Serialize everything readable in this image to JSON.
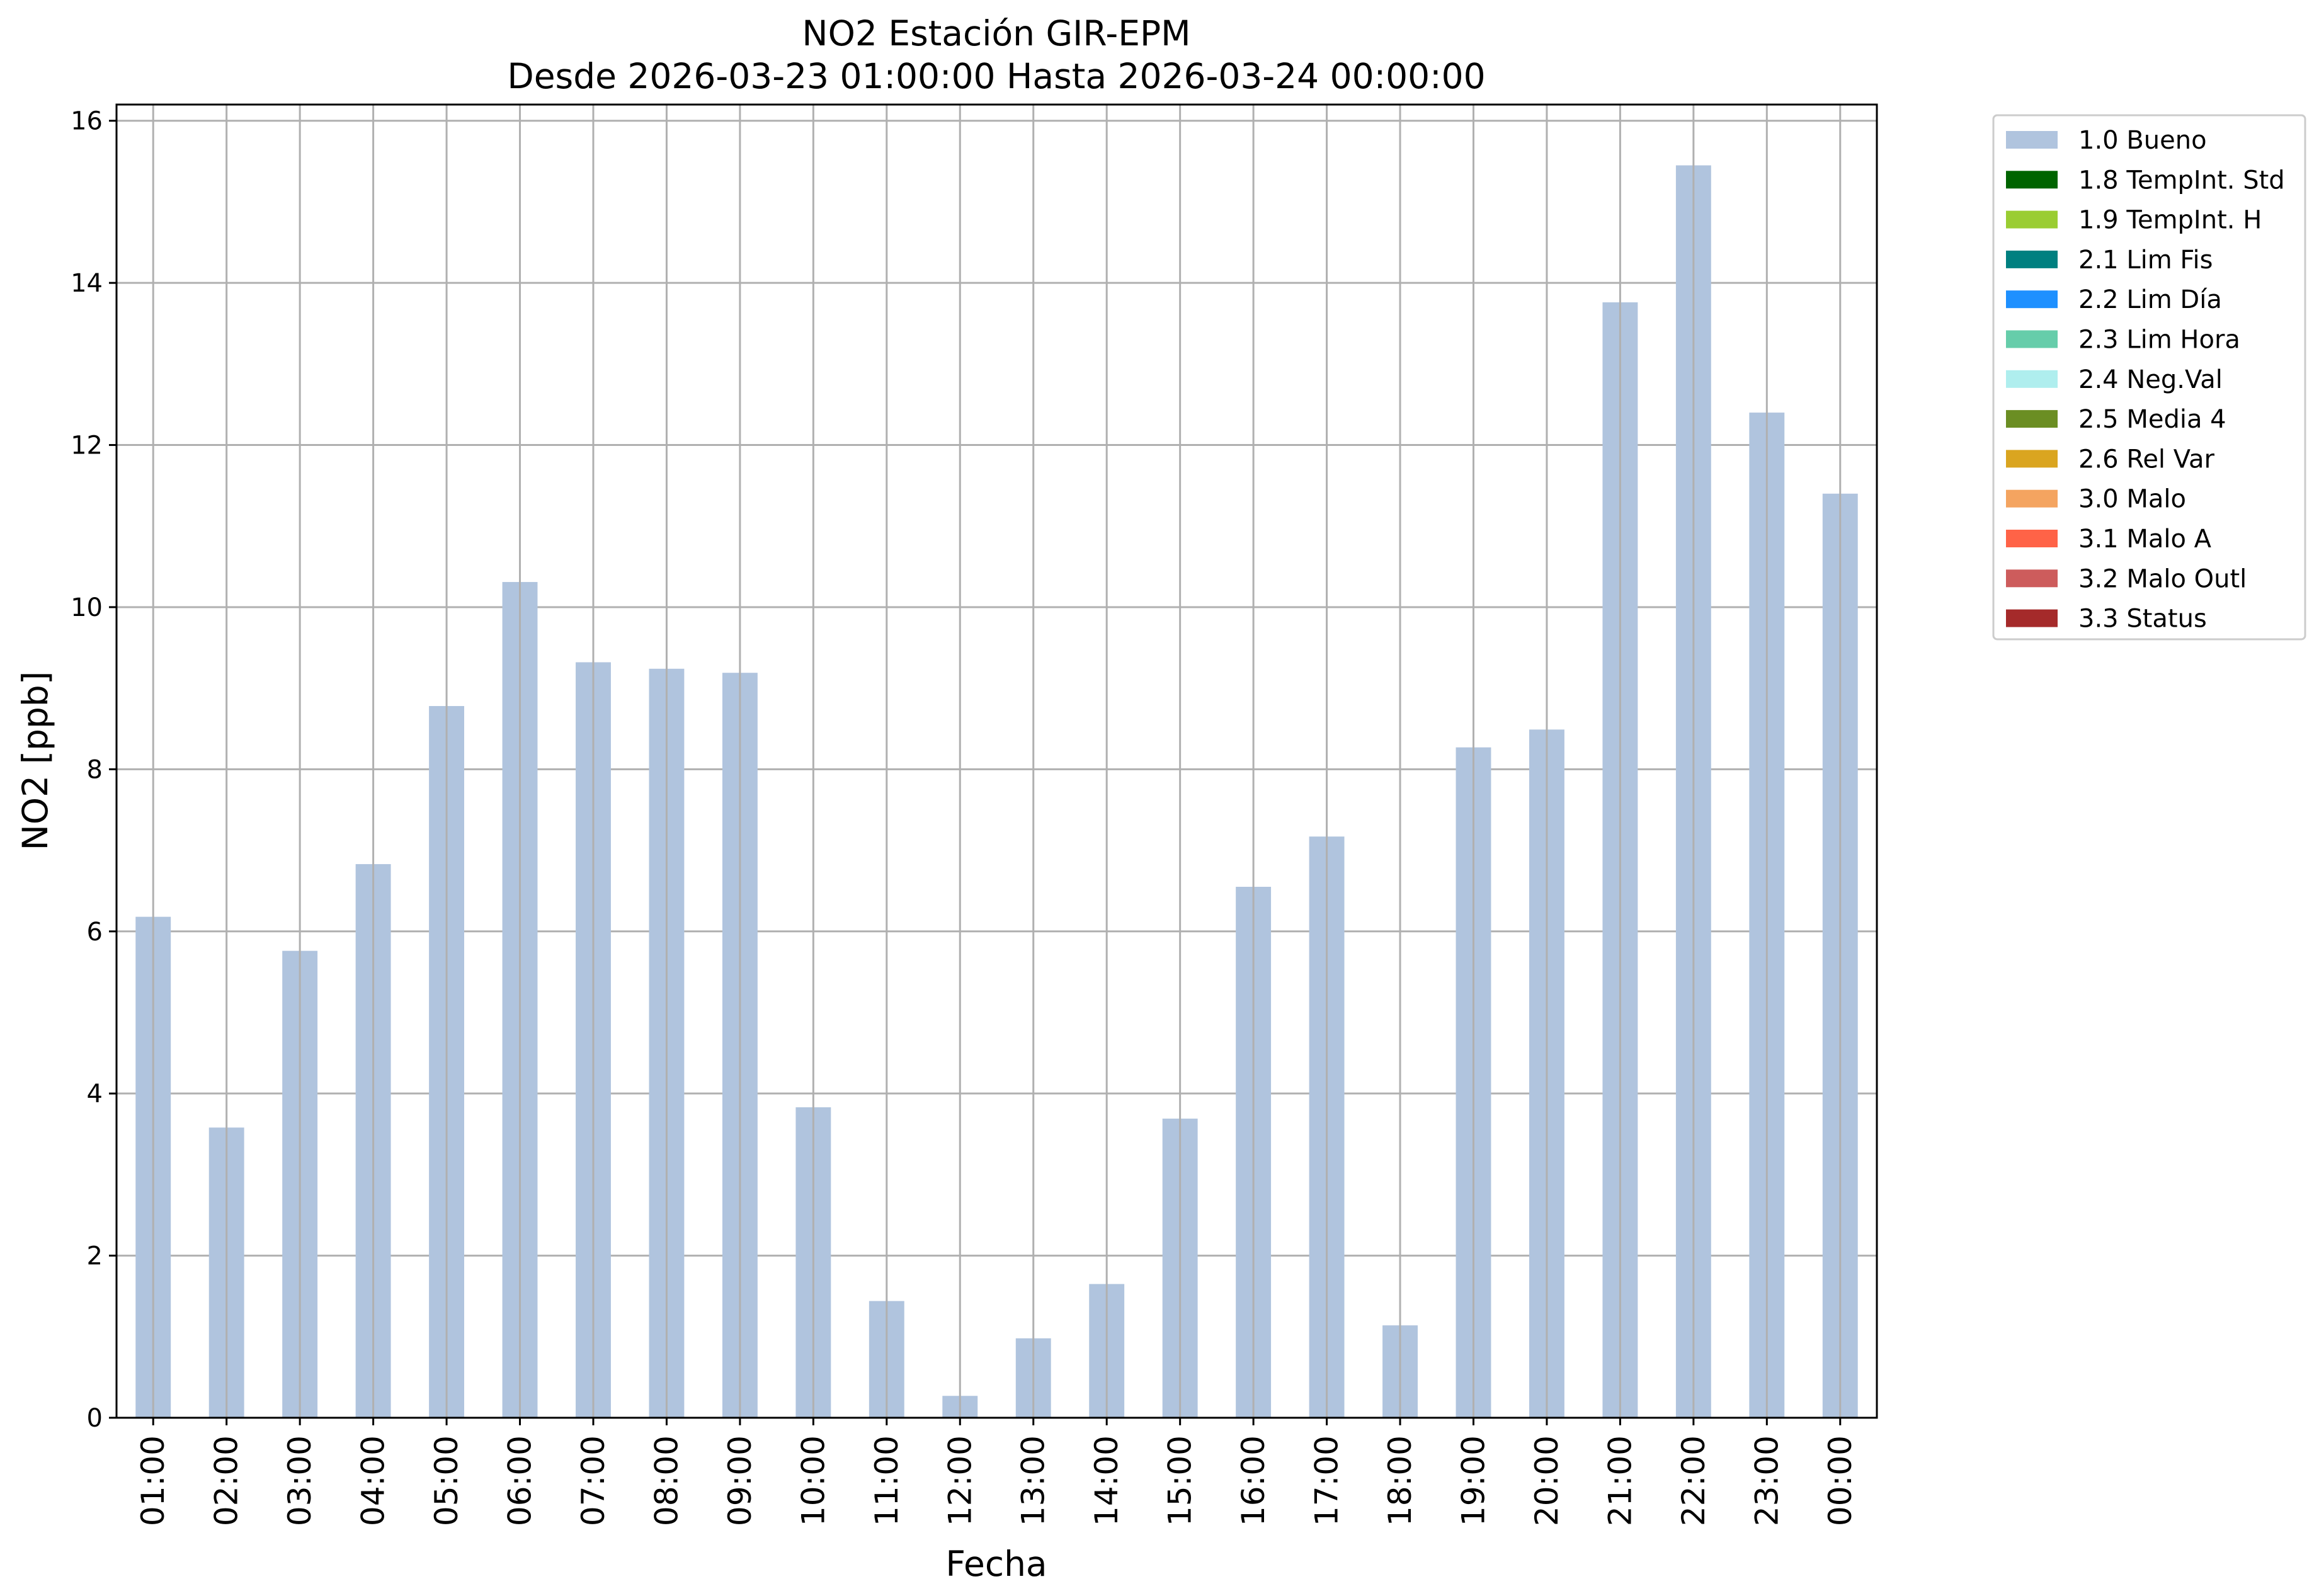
{
  "chart_data": {
    "type": "bar",
    "title": "NO2 Estación GIR-EPM",
    "subtitle": "Desde 2026-03-23 01:00:00 Hasta 2026-03-24 00:00:00",
    "xlabel": "Fecha",
    "ylabel": "NO2 [ppb]",
    "ylim": [
      0,
      16.2
    ],
    "yticks": [
      0,
      2,
      4,
      6,
      8,
      10,
      12,
      14,
      16
    ],
    "grid": true,
    "legend_position": "outside-right",
    "categories": [
      "01:00",
      "02:00",
      "03:00",
      "04:00",
      "05:00",
      "06:00",
      "07:00",
      "08:00",
      "09:00",
      "10:00",
      "11:00",
      "12:00",
      "13:00",
      "14:00",
      "15:00",
      "16:00",
      "17:00",
      "18:00",
      "19:00",
      "20:00",
      "21:00",
      "22:00",
      "23:00",
      "00:00"
    ],
    "series": [
      {
        "name": "1.0 Bueno",
        "color": "#b0c4de",
        "values": [
          6.18,
          3.58,
          5.76,
          6.83,
          8.78,
          10.31,
          9.32,
          9.24,
          9.19,
          3.83,
          1.44,
          0.27,
          0.98,
          1.65,
          3.69,
          6.55,
          7.17,
          1.14,
          8.27,
          8.49,
          13.76,
          15.45,
          12.4,
          11.4
        ]
      }
    ],
    "legend": [
      {
        "label": "1.0 Bueno",
        "color": "#b0c4de"
      },
      {
        "label": "1.8 TempInt. Std",
        "color": "#006400"
      },
      {
        "label": "1.9 TempInt. H",
        "color": "#9acd32"
      },
      {
        "label": "2.1 Lim Fis",
        "color": "#008080"
      },
      {
        "label": "2.2 Lim Día",
        "color": "#1e90ff"
      },
      {
        "label": "2.3 Lim Hora",
        "color": "#66cdaa"
      },
      {
        "label": "2.4 Neg.Val",
        "color": "#afeeee"
      },
      {
        "label": "2.5 Media 4",
        "color": "#6b8e23"
      },
      {
        "label": "2.6 Rel Var",
        "color": "#daa520"
      },
      {
        "label": "3.0 Malo",
        "color": "#f4a460"
      },
      {
        "label": "3.1 Malo A",
        "color": "#ff6347"
      },
      {
        "label": "3.2 Malo Outl",
        "color": "#cd5c5c"
      },
      {
        "label": "3.3 Status",
        "color": "#a52a2a"
      }
    ]
  }
}
